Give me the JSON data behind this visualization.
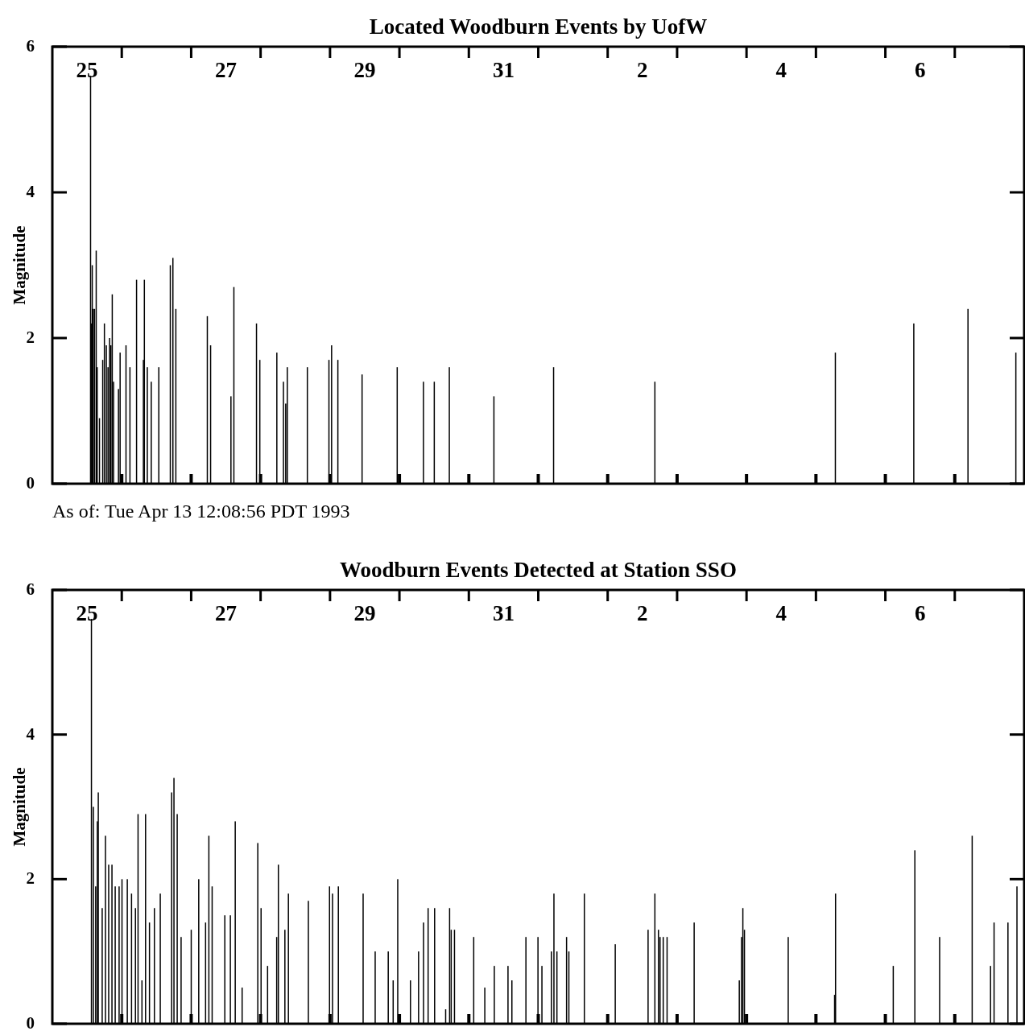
{
  "chart_data": [
    {
      "type": "bar",
      "title": "Located Woodburn Events by UofW",
      "ylabel": "Magnitude",
      "color": "#000000",
      "x": [
        "1993-03-25T13:13",
        "1993-03-25T13:35",
        "1993-03-25T13:48",
        "1993-03-25T14:08",
        "1993-03-25T14:35",
        "1993-03-25T15:10",
        "1993-03-25T15:30",
        "1993-03-25T16:18",
        "1993-03-25T17:25",
        "1993-03-25T18:00",
        "1993-03-25T18:40",
        "1993-03-25T19:15",
        "1993-03-25T19:48",
        "1993-03-25T20:15",
        "1993-03-25T20:43",
        "1993-03-25T21:10",
        "1993-03-25T22:52",
        "1993-03-25T23:26",
        "1993-03-26T01:28",
        "1993-03-26T02:50",
        "1993-03-26T05:07",
        "1993-03-26T07:29",
        "1993-03-26T07:49",
        "1993-03-26T08:50",
        "1993-03-26T10:12",
        "1993-03-26T12:49",
        "1993-03-26T16:47",
        "1993-03-26T17:41",
        "1993-03-26T18:42",
        "1993-03-27T05:35",
        "1993-03-27T06:43",
        "1993-03-27T13:45",
        "1993-03-27T14:46",
        "1993-03-27T22:35",
        "1993-03-27T23:44",
        "1993-03-28T05:37",
        "1993-03-28T07:54",
        "1993-03-28T08:41",
        "1993-03-28T09:14",
        "1993-03-28T16:10",
        "1993-03-28T23:38",
        "1993-03-29T00:33",
        "1993-03-29T02:43",
        "1993-03-29T11:05",
        "1993-03-29T23:14",
        "1993-03-30T08:18",
        "1993-03-30T12:03",
        "1993-03-30T17:15",
        "1993-03-31T08:40",
        "1993-04-01T05:18",
        "1993-04-02T16:19",
        "1993-04-05T06:43",
        "1993-04-06T09:50",
        "1993-04-07T04:34",
        "1993-04-07T21:07"
      ],
      "values": [
        5.6,
        2.2,
        3.0,
        2.4,
        2.4,
        3.2,
        1.6,
        0.9,
        1.7,
        2.2,
        1.9,
        1.6,
        2.0,
        1.9,
        2.6,
        1.4,
        1.3,
        1.8,
        1.9,
        1.6,
        2.8,
        1.7,
        2.8,
        1.6,
        1.4,
        1.6,
        3.0,
        3.1,
        2.4,
        2.3,
        1.9,
        1.2,
        2.7,
        2.2,
        1.7,
        1.8,
        1.4,
        1.1,
        1.6,
        1.6,
        1.7,
        1.9,
        1.7,
        1.5,
        1.6,
        1.4,
        1.4,
        1.6,
        1.2,
        1.6,
        1.4,
        1.8,
        2.2,
        2.4,
        1.8
      ],
      "xlim": [
        "1993-03-25T00:00",
        "1993-04-08T00:00"
      ],
      "xticks": [
        {
          "value": "1993-03-25T12:00",
          "label": "25"
        },
        {
          "value": "1993-03-26T00:00",
          "label": null
        },
        {
          "value": "1993-03-27T00:00",
          "label": null
        },
        {
          "value": "1993-03-27T12:00",
          "label": "27"
        },
        {
          "value": "1993-03-28T00:00",
          "label": null
        },
        {
          "value": "1993-03-29T00:00",
          "label": null
        },
        {
          "value": "1993-03-29T12:00",
          "label": "29"
        },
        {
          "value": "1993-03-30T00:00",
          "label": null
        },
        {
          "value": "1993-03-31T00:00",
          "label": null
        },
        {
          "value": "1993-03-31T12:00",
          "label": "31"
        },
        {
          "value": "1993-04-01T00:00",
          "label": null
        },
        {
          "value": "1993-04-02T00:00",
          "label": null
        },
        {
          "value": "1993-04-02T12:00",
          "label": "2"
        },
        {
          "value": "1993-04-03T00:00",
          "label": null
        },
        {
          "value": "1993-04-04T00:00",
          "label": null
        },
        {
          "value": "1993-04-04T12:00",
          "label": "4"
        },
        {
          "value": "1993-04-05T00:00",
          "label": null
        },
        {
          "value": "1993-04-06T00:00",
          "label": null
        },
        {
          "value": "1993-04-06T12:00",
          "label": "6"
        },
        {
          "value": "1993-04-07T00:00",
          "label": null
        }
      ],
      "ylim": [
        0,
        6
      ],
      "yticks": [
        0,
        2,
        4,
        6
      ],
      "annotations": [
        "As of: Tue Apr 13 12:08:56 PDT 1993"
      ]
    },
    {
      "type": "bar",
      "title": "Woodburn Events Detected at Station SSO",
      "ylabel": "Magnitude",
      "color": "#000000",
      "x": [
        "1993-03-25T13:31",
        "1993-03-25T14:11",
        "1993-03-25T14:59",
        "1993-03-25T15:33",
        "1993-03-25T15:53",
        "1993-03-25T17:14",
        "1993-03-25T18:22",
        "1993-03-25T19:29",
        "1993-03-25T20:37",
        "1993-03-25T21:44",
        "1993-03-25T23:05",
        "1993-03-26T00:05",
        "1993-03-26T01:55",
        "1993-03-26T03:23",
        "1993-03-26T04:44",
        "1993-03-26T05:38",
        "1993-03-26T06:59",
        "1993-03-26T08:14",
        "1993-03-26T09:35",
        "1993-03-26T11:17",
        "1993-03-26T13:19",
        "1993-03-26T17:15",
        "1993-03-26T18:03",
        "1993-03-26T19:10",
        "1993-03-26T20:31",
        "1993-03-27T00:01",
        "1993-03-27T02:37",
        "1993-03-27T04:59",
        "1993-03-27T06:07",
        "1993-03-27T07:15",
        "1993-03-27T11:38",
        "1993-03-27T13:33",
        "1993-03-27T15:14",
        "1993-03-27T17:37",
        "1993-03-27T23:02",
        "1993-03-28T00:10",
        "1993-03-28T02:25",
        "1993-03-28T05:34",
        "1993-03-28T06:09",
        "1993-03-28T08:24",
        "1993-03-28T09:37",
        "1993-03-28T16:31",
        "1993-03-28T23:50",
        "1993-03-29T00:52",
        "1993-03-29T02:53",
        "1993-03-29T11:27",
        "1993-03-29T15:37",
        "1993-03-29T20:08",
        "1993-03-29T21:50",
        "1993-03-29T23:25",
        "1993-03-30T03:49",
        "1993-03-30T06:37",
        "1993-03-30T08:20",
        "1993-03-30T09:55",
        "1993-03-30T12:10",
        "1993-03-30T15:59",
        "1993-03-30T17:21",
        "1993-03-30T17:54",
        "1993-03-30T19:02",
        "1993-03-31T01:41",
        "1993-03-31T05:31",
        "1993-03-31T08:48",
        "1993-03-31T13:32",
        "1993-03-31T14:53",
        "1993-03-31T19:44",
        "1993-03-31T23:54",
        "1993-04-01T01:16",
        "1993-04-01T04:32",
        "1993-04-01T05:25",
        "1993-04-01T06:27",
        "1993-04-01T09:47",
        "1993-04-01T10:35",
        "1993-04-01T15:56",
        "1993-04-02T02:37",
        "1993-04-02T13:58",
        "1993-04-02T16:19",
        "1993-04-02T17:33",
        "1993-04-02T18:06",
        "1993-04-02T19:12",
        "1993-04-02T20:32",
        "1993-04-03T05:54",
        "1993-04-03T21:30",
        "1993-04-03T22:16",
        "1993-04-03T22:44",
        "1993-04-03T23:17",
        "1993-04-04T14:25",
        "1993-04-05T06:27",
        "1993-04-05T06:47",
        "1993-04-06T02:44",
        "1993-04-06T10:12",
        "1993-04-06T18:46",
        "1993-04-07T06:01",
        "1993-04-07T12:22",
        "1993-04-07T13:35",
        "1993-04-07T18:23",
        "1993-04-07T21:30"
      ],
      "values": [
        5.6,
        3.0,
        1.9,
        2.8,
        3.2,
        1.6,
        2.6,
        2.2,
        2.2,
        1.9,
        1.9,
        2.0,
        2.0,
        1.8,
        1.6,
        2.9,
        0.6,
        2.9,
        1.4,
        1.6,
        1.8,
        3.2,
        3.4,
        2.9,
        1.2,
        1.3,
        2.0,
        1.4,
        2.6,
        1.9,
        1.5,
        1.5,
        2.8,
        0.5,
        2.5,
        1.6,
        0.8,
        1.2,
        2.2,
        1.3,
        1.8,
        1.7,
        1.9,
        1.8,
        1.9,
        1.8,
        1.0,
        1.0,
        0.6,
        2.0,
        0.6,
        1.0,
        1.4,
        1.6,
        1.6,
        0.2,
        1.6,
        1.3,
        1.3,
        1.2,
        0.5,
        0.8,
        0.8,
        0.6,
        1.2,
        1.2,
        0.8,
        1.0,
        1.8,
        1.0,
        1.2,
        1.0,
        1.8,
        1.1,
        1.3,
        1.8,
        1.3,
        1.2,
        1.2,
        1.2,
        1.4,
        0.6,
        1.2,
        1.6,
        1.3,
        1.2,
        0.4,
        1.8,
        0.8,
        2.4,
        1.2,
        2.6,
        0.8,
        1.4,
        1.4,
        1.9
      ],
      "xlim": [
        "1993-03-25T00:00",
        "1993-04-08T00:00"
      ],
      "xticks": [
        {
          "value": "1993-03-25T12:00",
          "label": "25"
        },
        {
          "value": "1993-03-26T00:00",
          "label": null
        },
        {
          "value": "1993-03-27T00:00",
          "label": null
        },
        {
          "value": "1993-03-27T12:00",
          "label": "27"
        },
        {
          "value": "1993-03-28T00:00",
          "label": null
        },
        {
          "value": "1993-03-29T00:00",
          "label": null
        },
        {
          "value": "1993-03-29T12:00",
          "label": "29"
        },
        {
          "value": "1993-03-30T00:00",
          "label": null
        },
        {
          "value": "1993-03-31T00:00",
          "label": null
        },
        {
          "value": "1993-03-31T12:00",
          "label": "31"
        },
        {
          "value": "1993-04-01T00:00",
          "label": null
        },
        {
          "value": "1993-04-02T00:00",
          "label": null
        },
        {
          "value": "1993-04-02T12:00",
          "label": "2"
        },
        {
          "value": "1993-04-03T00:00",
          "label": null
        },
        {
          "value": "1993-04-04T00:00",
          "label": null
        },
        {
          "value": "1993-04-04T12:00",
          "label": "4"
        },
        {
          "value": "1993-04-05T00:00",
          "label": null
        },
        {
          "value": "1993-04-06T00:00",
          "label": null
        },
        {
          "value": "1993-04-06T12:00",
          "label": "6"
        },
        {
          "value": "1993-04-07T00:00",
          "label": null
        }
      ],
      "ylim": [
        0,
        6
      ],
      "yticks": [
        0,
        2,
        4,
        6
      ]
    }
  ]
}
